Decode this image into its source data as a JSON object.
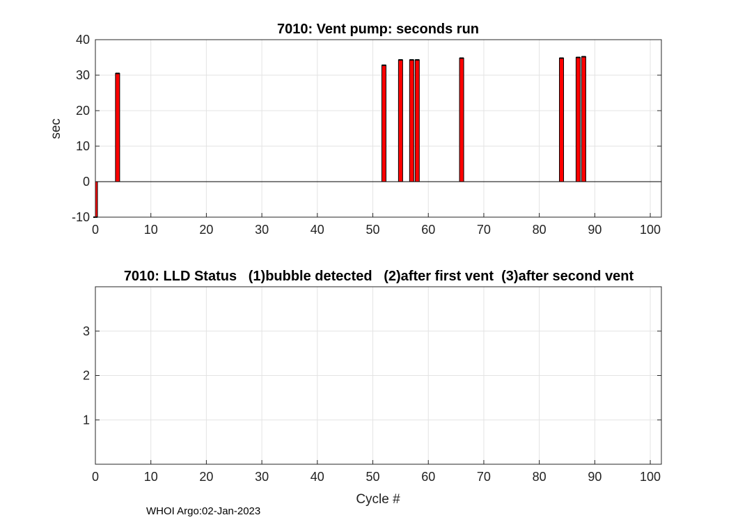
{
  "chart_data": [
    {
      "type": "bar",
      "title": "7010: Vent pump: seconds run",
      "xlabel": "",
      "ylabel": "sec",
      "xlim": [
        0,
        102
      ],
      "ylim": [
        -10,
        40
      ],
      "xticks": [
        0,
        10,
        20,
        30,
        40,
        50,
        60,
        70,
        80,
        90,
        100
      ],
      "yticks": [
        -10,
        0,
        10,
        20,
        30,
        40
      ],
      "grid": true,
      "x": [
        0,
        4,
        52,
        55,
        57,
        58,
        66,
        84,
        87,
        88
      ],
      "values": [
        -10,
        30.5,
        32.8,
        34.3,
        34.3,
        34.3,
        34.8,
        34.8,
        35.0,
        35.2
      ],
      "bar_color": "#ff0000"
    },
    {
      "type": "scatter",
      "title": "7010: LLD Status   (1)bubble detected   (2)after first vent  (3)after second vent",
      "xlabel": "Cycle #",
      "ylabel": "",
      "xlim": [
        0,
        102
      ],
      "ylim": [
        0,
        4
      ],
      "xticks": [
        0,
        10,
        20,
        30,
        40,
        50,
        60,
        70,
        80,
        90,
        100
      ],
      "yticks": [
        1,
        2,
        3
      ],
      "grid": true,
      "x": [],
      "values": []
    }
  ],
  "footer": "WHOI Argo:02-Jan-2023"
}
